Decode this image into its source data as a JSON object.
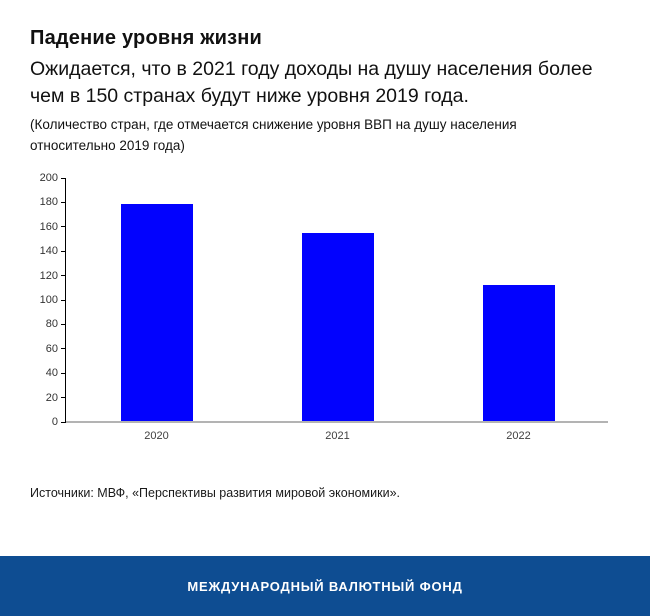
{
  "header": {
    "title": "Падение уровня жизни",
    "subtitle": "Ожидается, что в 2021 году доходы на душу населения более\nчем в 150 странах будут ниже уровня 2019 года.",
    "note": "(Количество стран, где отмечается снижение уровня ВВП на душу населения\nотносительно 2019 года)"
  },
  "chart_data": {
    "type": "bar",
    "categories": [
      "2020",
      "2021",
      "2022"
    ],
    "values": [
      179,
      155,
      112
    ],
    "title": "Падение уровня жизни",
    "xlabel": "",
    "ylabel": "",
    "ylim": [
      0,
      200
    ],
    "ytick_step": 20,
    "grid": false,
    "legend": false,
    "bar_color": "#0202fe",
    "axis_color": "#000000",
    "baseline_color": "#b3b3b3"
  },
  "footer": {
    "source": "Источники: МВФ, «Перспективы развития мировой экономики».",
    "brand": "МЕЖДУНАРОДНЫЙ ВАЛЮТНЫЙ ФОНД",
    "brand_bg_color": "#0e4d92"
  }
}
